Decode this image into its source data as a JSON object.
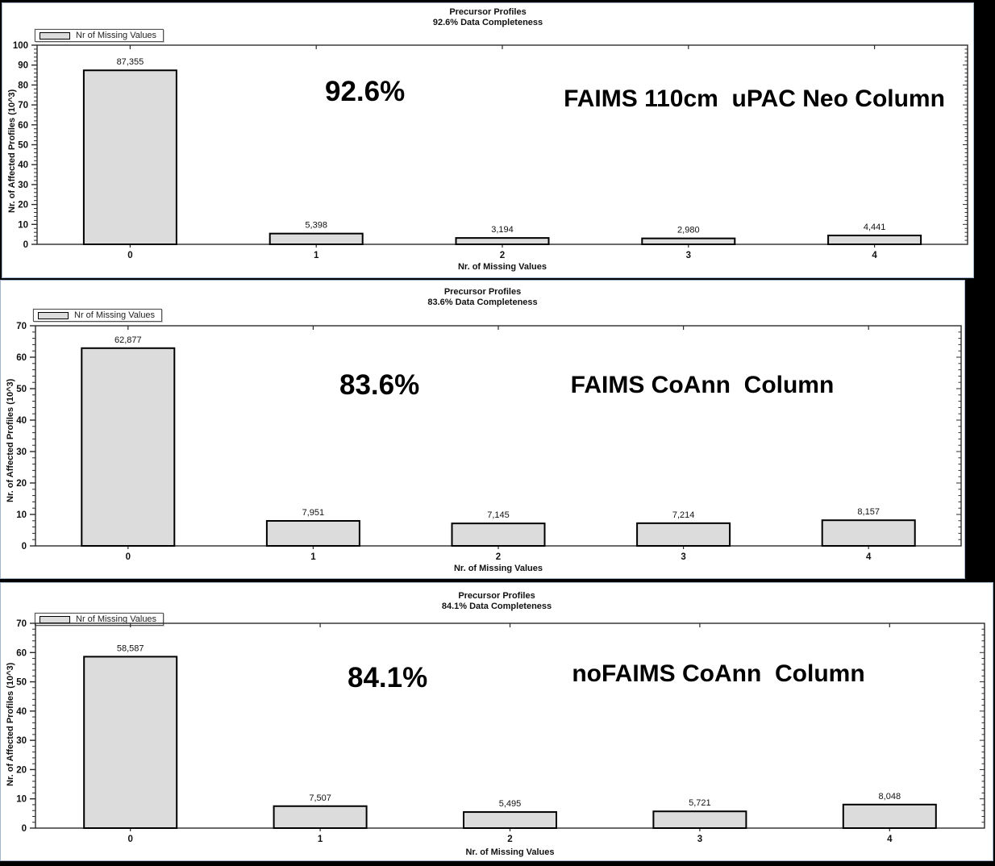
{
  "colors": {
    "background": "#000000",
    "panel_background": "#ffffff",
    "panel_border": "#a3b5cc",
    "bar_fill": "#dcdcdc",
    "bar_stroke": "#000000",
    "axis_color": "#2b2b2b",
    "text_color": "#111111"
  },
  "chart_data": [
    {
      "type": "bar",
      "title": "Precursor Profiles",
      "subtitle": "92.6% Data Completeness",
      "legend_label": "Nr of Missing Values",
      "annotation_percent": "92.6%",
      "annotation_column": "FAIMS 110cm  uPAC Neo Column",
      "xlabel": "Nr. of Missing Values",
      "ylabel": "Nr. of Affected Profiles (10^3)",
      "categories": [
        "0",
        "1",
        "2",
        "3",
        "4"
      ],
      "values": [
        87355,
        5398,
        3194,
        2980,
        4441
      ],
      "value_labels": [
        "87,355",
        "5,398",
        "3,194",
        "2,980",
        "4,441"
      ],
      "ylim": [
        0,
        100
      ],
      "ytick_major": 10,
      "ytick_minor": 2,
      "unit_scale": 1000,
      "grid": false,
      "legend_position": "top-left"
    },
    {
      "type": "bar",
      "title": "Precursor Profiles",
      "subtitle": "83.6% Data Completeness",
      "legend_label": "Nr of Missing Values",
      "annotation_percent": "83.6%",
      "annotation_column": "FAIMS CoAnn  Column",
      "xlabel": "Nr. of Missing Values",
      "ylabel": "Nr. of Affected Profiles (10^3)",
      "categories": [
        "0",
        "1",
        "2",
        "3",
        "4"
      ],
      "values": [
        62877,
        7951,
        7145,
        7214,
        8157
      ],
      "value_labels": [
        "62,877",
        "7,951",
        "7,145",
        "7,214",
        "8,157"
      ],
      "ylim": [
        0,
        70
      ],
      "ytick_major": 10,
      "ytick_minor": 2,
      "unit_scale": 1000,
      "grid": false,
      "legend_position": "top-left"
    },
    {
      "type": "bar",
      "title": "Precursor Profiles",
      "subtitle": "84.1% Data Completeness",
      "legend_label": "Nr of Missing Values",
      "annotation_percent": "84.1%",
      "annotation_column": "noFAIMS CoAnn  Column",
      "xlabel": "Nr. of Missing Values",
      "ylabel": "Nr. of Affected Profiles (10^3)",
      "categories": [
        "0",
        "1",
        "2",
        "3",
        "4"
      ],
      "values": [
        58587,
        7507,
        5495,
        5721,
        8048
      ],
      "value_labels": [
        "58,587",
        "7,507",
        "5,495",
        "5,721",
        "8,048"
      ],
      "ylim": [
        0,
        70
      ],
      "ytick_major": 10,
      "ytick_minor": 2,
      "unit_scale": 1000,
      "grid": false,
      "legend_position": "top-left"
    }
  ]
}
